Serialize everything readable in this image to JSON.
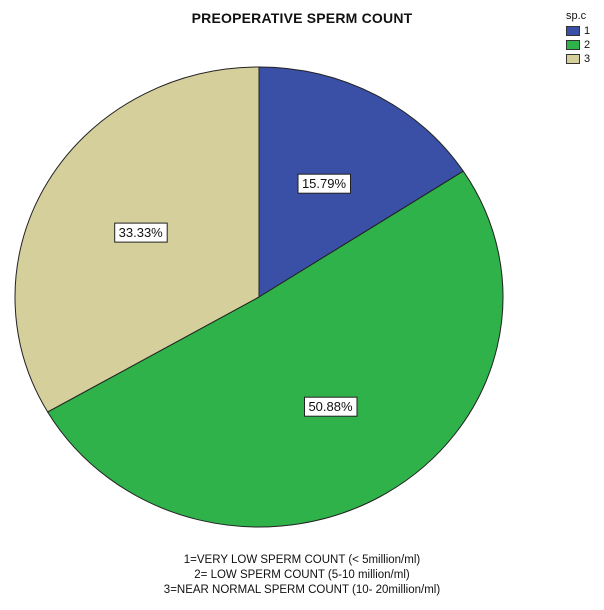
{
  "chart_data": {
    "type": "pie",
    "title": "PREOPERATIVE SPERM COUNT",
    "legend": {
      "title": "sp.c",
      "placement": "top-right"
    },
    "slices": [
      {
        "name": "1",
        "value": 15.79,
        "label": "15.79%",
        "color": "#3A4FA6"
      },
      {
        "name": "2",
        "value": 50.88,
        "label": "50.88%",
        "color": "#2FB24A"
      },
      {
        "name": "3",
        "value": 33.33,
        "label": "33.33%",
        "color": "#D5CF9C"
      }
    ],
    "notes": [
      "1=VERY LOW SPERM COUNT (< 5million/ml)",
      "2= LOW SPERM COUNT (5-10 million/ml)",
      "3=NEAR NORMAL SPERM COUNT (10- 20million/ml)"
    ]
  }
}
